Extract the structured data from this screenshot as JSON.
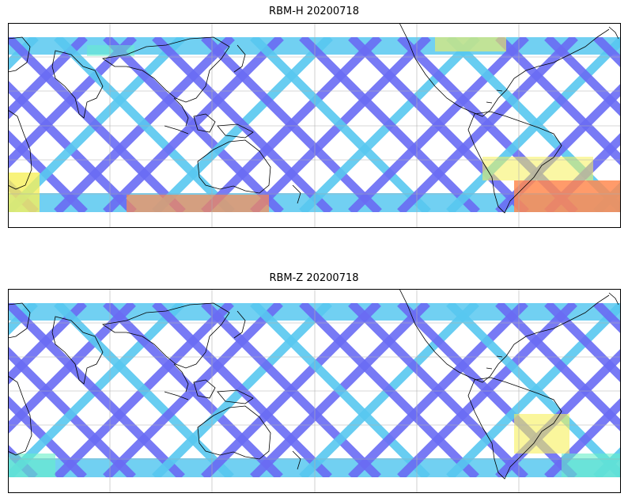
{
  "panels": [
    {
      "title": "RBM-H 20200718",
      "field": "H",
      "colors": {
        "low": "#6a6cf4",
        "mid": "#58c8f0",
        "midhigh": "#66f0c8",
        "high": "#f6f05a",
        "peak": "#ff8a50"
      }
    },
    {
      "title": "RBM-Z 20200718",
      "field": "Z",
      "colors": {
        "low": "#6a6cf4",
        "mid": "#58c8f0",
        "midhigh": "#66f0c8",
        "high": "#f6f05a",
        "peak": "#ff8a50"
      }
    }
  ],
  "map": {
    "projection": "PlateCarree",
    "central_longitude": 180,
    "gridlines": true,
    "coastlines": true
  }
}
